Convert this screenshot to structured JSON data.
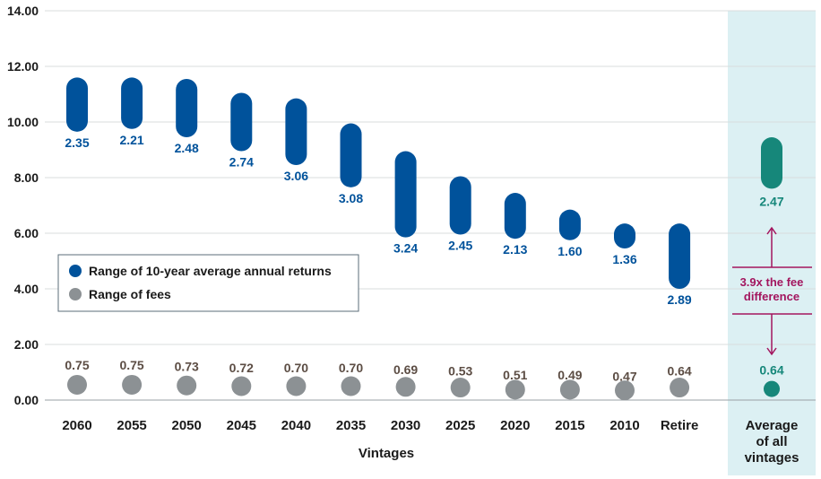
{
  "chart_data": {
    "type": "range-bar",
    "xlabel": "Vintages",
    "ylim": [
      0,
      14
    ],
    "yticks": [
      "0.00",
      "2.00",
      "4.00",
      "6.00",
      "8.00",
      "10.00",
      "12.00",
      "14.00"
    ],
    "grid": true,
    "legend_position": "left-middle",
    "colors": {
      "returns": "#00529b",
      "fees": "#8c9194",
      "average_returns": "#16877a",
      "highlight_bg": "#dcf0f3",
      "annotation": "#a3155e",
      "fee_label": "#5c4d44"
    },
    "categories": [
      "2060",
      "2055",
      "2050",
      "2045",
      "2040",
      "2035",
      "2030",
      "2025",
      "2020",
      "2015",
      "2010",
      "Retire"
    ],
    "series": [
      {
        "name": "Range of 10-year average annual returns",
        "low": [
          9.65,
          9.75,
          9.45,
          8.95,
          8.45,
          7.65,
          5.85,
          5.95,
          5.8,
          5.75,
          5.45,
          4.0
        ],
        "high": [
          11.6,
          11.6,
          11.55,
          11.05,
          10.85,
          9.95,
          8.95,
          8.05,
          7.45,
          6.85,
          6.35,
          6.35
        ],
        "labels": [
          "2.35",
          "2.21",
          "2.48",
          "2.74",
          "3.06",
          "3.08",
          "3.24",
          "2.45",
          "2.13",
          "1.60",
          "1.36",
          "2.89"
        ]
      },
      {
        "name": "Range of fees",
        "low": [
          0.2,
          0.2,
          0.2,
          0.2,
          0.2,
          0.2,
          0.2,
          0.2,
          0.2,
          0.2,
          0.2,
          0.2
        ],
        "high": [
          0.9,
          0.9,
          0.85,
          0.8,
          0.8,
          0.8,
          0.75,
          0.7,
          0.55,
          0.55,
          0.5,
          0.7
        ],
        "labels": [
          "0.75",
          "0.75",
          "0.73",
          "0.72",
          "0.70",
          "0.70",
          "0.69",
          "0.53",
          "0.51",
          "0.49",
          "0.47",
          "0.64"
        ]
      }
    ],
    "average": {
      "category_lines": [
        "Average",
        "of all",
        "vintages"
      ],
      "returns": {
        "low": 7.6,
        "high": 9.45,
        "label": "2.47"
      },
      "fees": {
        "low": 0.2,
        "high": 0.6,
        "label": "0.64"
      },
      "annotation_lines": [
        "3.9x the fee",
        "difference"
      ]
    }
  }
}
